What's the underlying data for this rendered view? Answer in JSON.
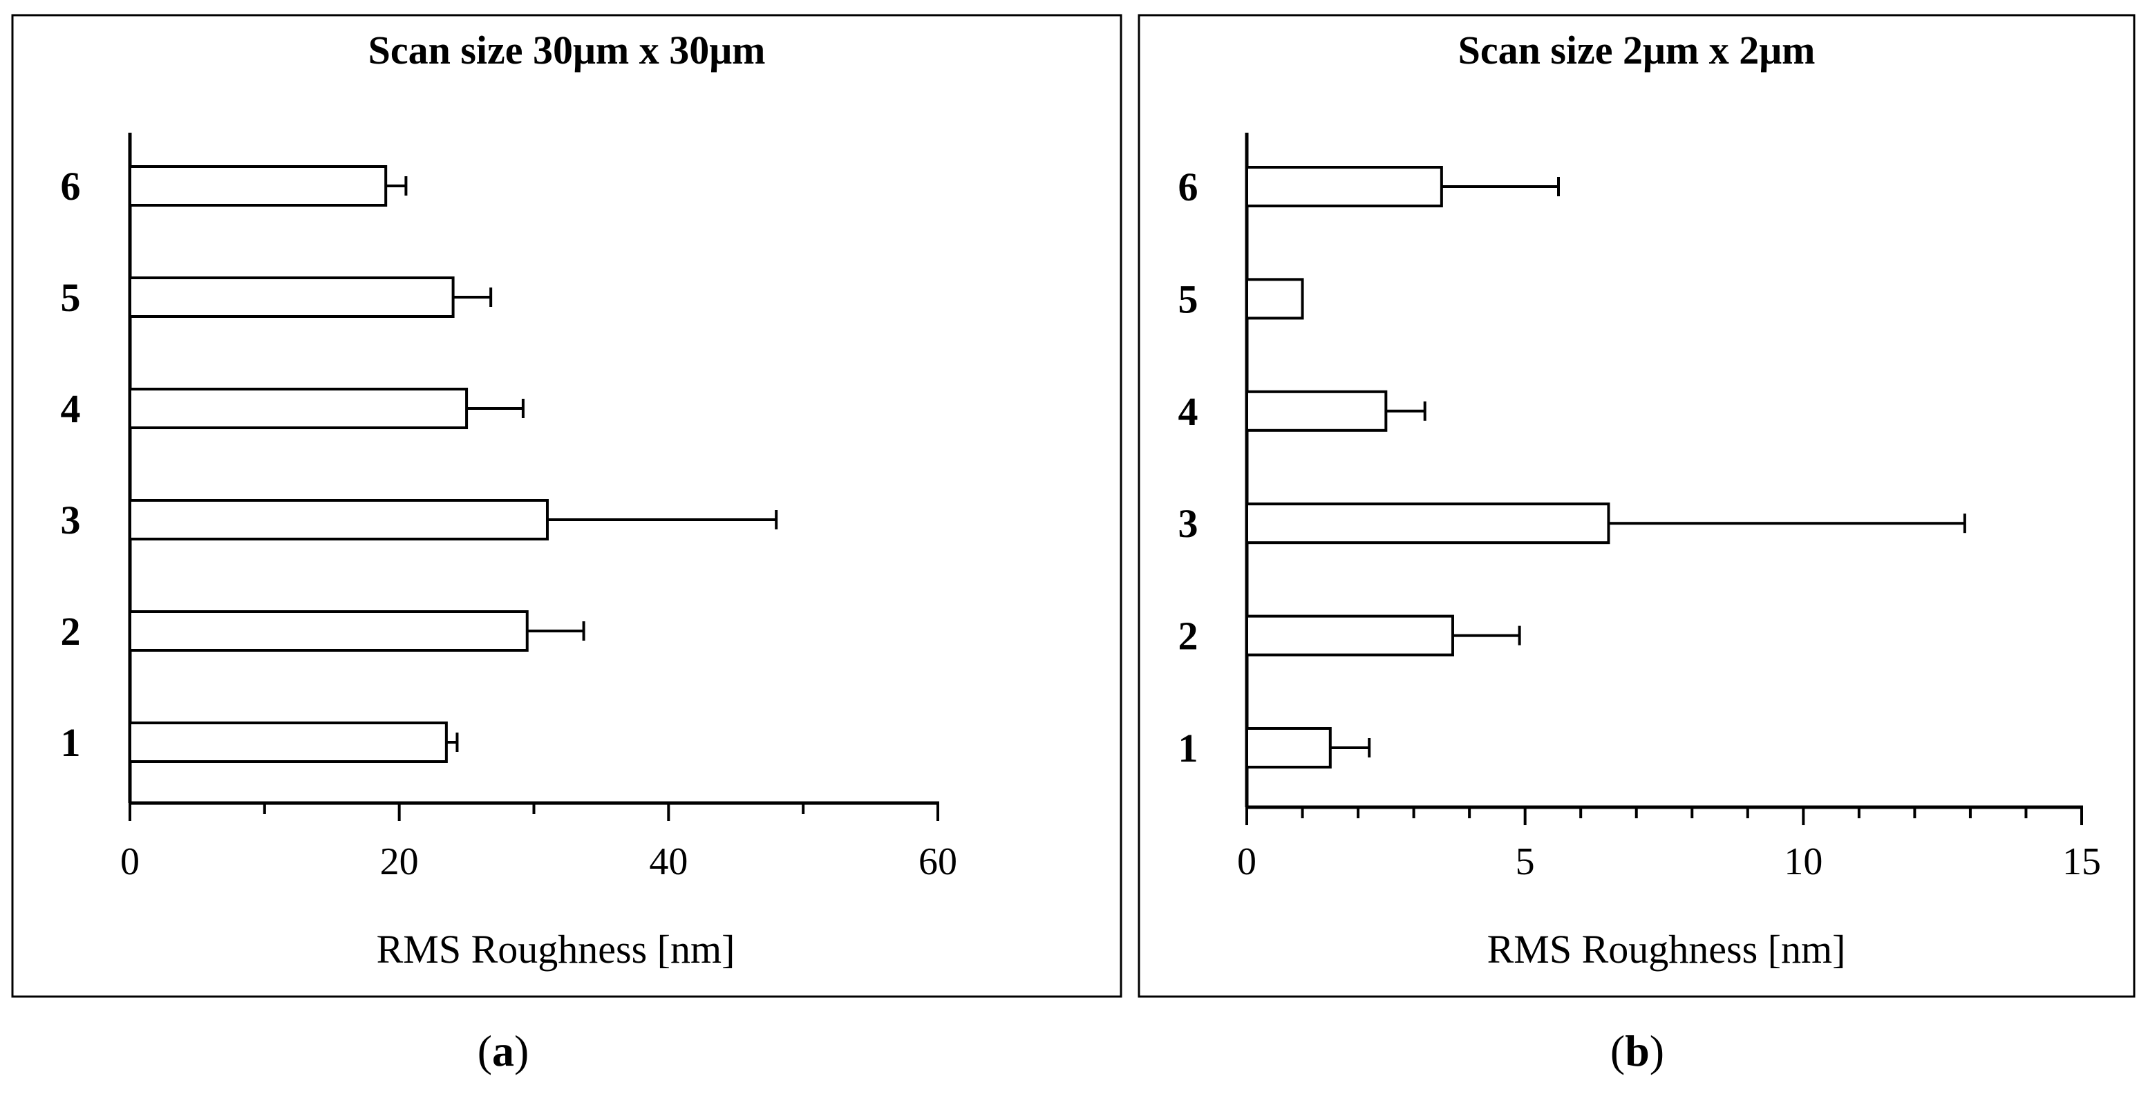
{
  "chart_data": [
    {
      "type": "bar",
      "orientation": "horizontal",
      "title": "Scan size 30μm x 30μm",
      "xlabel": "RMS Roughness [nm]",
      "ylabel": "",
      "categories": [
        "1",
        "2",
        "3",
        "4",
        "5",
        "6"
      ],
      "values": [
        23.5,
        29.5,
        31,
        25,
        24,
        19
      ],
      "errors": [
        0.8,
        4.2,
        17,
        4.2,
        2.8,
        1.5
      ],
      "xlim": [
        0,
        60
      ],
      "xticks": [
        0,
        20,
        40,
        60
      ],
      "minor_step": 10,
      "grid": false,
      "caption_letter": "a"
    },
    {
      "type": "bar",
      "orientation": "horizontal",
      "title": "Scan size 2μm x 2μm",
      "xlabel": "RMS Roughness [nm]",
      "ylabel": "",
      "categories": [
        "1",
        "2",
        "3",
        "4",
        "5",
        "6"
      ],
      "values": [
        1.5,
        3.7,
        6.5,
        2.5,
        1.0,
        3.5
      ],
      "errors": [
        0.7,
        1.2,
        6.4,
        0.7,
        0,
        2.1
      ],
      "xlim": [
        0,
        15
      ],
      "xticks": [
        0,
        5,
        10,
        15
      ],
      "minor_step": 1,
      "grid": false,
      "caption_letter": "b"
    }
  ]
}
